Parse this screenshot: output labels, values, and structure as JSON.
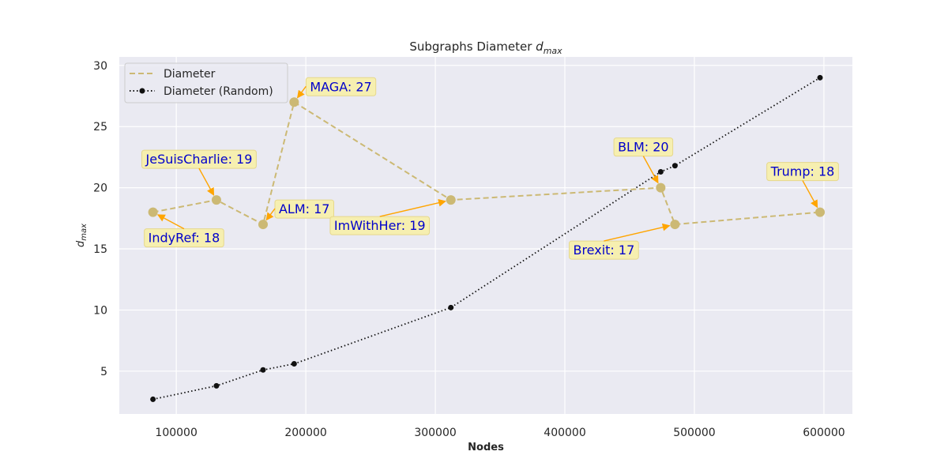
{
  "chart_data": {
    "type": "line",
    "title": "Subgraphs Diameter",
    "title_symbol": "d",
    "title_symbol_sub": "max",
    "xlabel": "Nodes",
    "ylabel_symbol": "d",
    "ylabel_symbol_sub": "max",
    "xlim": [
      56000,
      622000
    ],
    "ylim": [
      1.5,
      30.7
    ],
    "xticks": [
      100000,
      200000,
      300000,
      400000,
      500000,
      600000
    ],
    "xtick_labels": [
      "100000",
      "200000",
      "300000",
      "400000",
      "500000",
      "600000"
    ],
    "yticks": [
      5,
      10,
      15,
      20,
      25,
      30
    ],
    "ytick_labels": [
      "5",
      "10",
      "15",
      "20",
      "25",
      "30"
    ],
    "grid": true,
    "legend_position": "top-left",
    "series": [
      {
        "name": "Diameter",
        "style": "dashed",
        "color": "#ccb974",
        "points": [
          {
            "x": 82000,
            "y": 18
          },
          {
            "x": 131000,
            "y": 19
          },
          {
            "x": 167000,
            "y": 17
          },
          {
            "x": 191000,
            "y": 27
          },
          {
            "x": 312000,
            "y": 19
          },
          {
            "x": 474000,
            "y": 20
          },
          {
            "x": 485000,
            "y": 17
          },
          {
            "x": 597000,
            "y": 18
          }
        ]
      },
      {
        "name": "Diameter (Random)",
        "style": "dotted",
        "color": "#111111",
        "points": [
          {
            "x": 82000,
            "y": 2.7
          },
          {
            "x": 131000,
            "y": 3.8
          },
          {
            "x": 167000,
            "y": 5.1
          },
          {
            "x": 191000,
            "y": 5.6
          },
          {
            "x": 312000,
            "y": 10.2
          },
          {
            "x": 474000,
            "y": 21.3
          },
          {
            "x": 485000,
            "y": 21.8
          },
          {
            "x": 597000,
            "y": 29.0
          }
        ]
      }
    ],
    "annotations": [
      {
        "text": "IndyRef: 18",
        "point": 0,
        "placement": "below-right"
      },
      {
        "text": "JeSuisCharlie: 19",
        "point": 1,
        "placement": "above-left"
      },
      {
        "text": "ALM: 17",
        "point": 2,
        "placement": "above-right"
      },
      {
        "text": "MAGA: 27",
        "point": 3,
        "placement": "above-right"
      },
      {
        "text": "ImWithHer: 19",
        "point": 4,
        "placement": "below-left"
      },
      {
        "text": "BLM: 20",
        "point": 5,
        "placement": "above-left"
      },
      {
        "text": "Brexit: 17",
        "point": 6,
        "placement": "below-left"
      },
      {
        "text": "Trump: 18",
        "point": 7,
        "placement": "above-left"
      }
    ],
    "colors": {
      "plot_background": "#eaeaf2",
      "grid": "#ffffff",
      "annotation_box": "#f7f0a8",
      "annotation_arrow": "#ffa500",
      "annotation_text": "#0000cc"
    }
  }
}
